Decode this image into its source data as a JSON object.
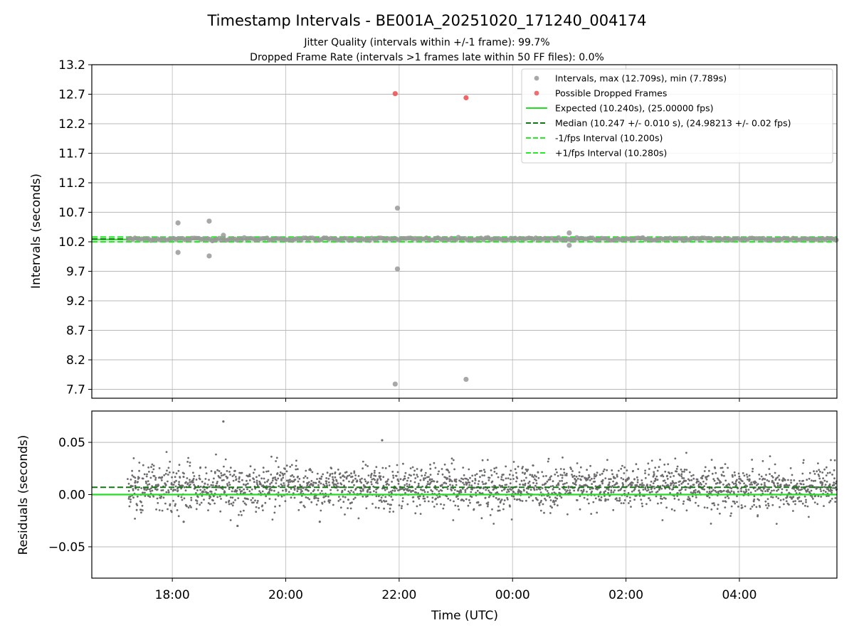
{
  "title": "Timestamp Intervals - BE001A_20251020_171240_004174",
  "subtitle_1": "Jitter Quality (intervals within +/-1 frame): 99.7%",
  "subtitle_2": "Dropped Frame Rate (intervals >1 frames late within 50 FF files): 0.0%",
  "chart_data": [
    {
      "type": "scatter",
      "name": "intervals",
      "ylabel": "Intervals (seconds)",
      "xlabel": "",
      "xlim_hours": [
        16.58,
        29.72
      ],
      "ylim": [
        7.55,
        13.2
      ],
      "y_ticks": [
        7.7,
        8.2,
        8.7,
        9.2,
        9.7,
        10.2,
        10.7,
        11.2,
        11.7,
        12.2,
        12.7,
        13.2
      ],
      "y_tick_labels": [
        "7.7",
        "8.2",
        "8.7",
        "9.2",
        "9.7",
        "10.2",
        "10.7",
        "11.2",
        "11.7",
        "12.2",
        "12.7",
        "13.2"
      ],
      "x_ticks_hours": [
        18,
        20,
        22,
        24,
        26,
        28
      ],
      "grid": true,
      "data_start_hours": 17.22,
      "data_end_hours": 29.72,
      "baseline_interval": 10.247,
      "outliers": [
        {
          "x": 18.1,
          "y": 10.52
        },
        {
          "x": 18.1,
          "y": 10.02
        },
        {
          "x": 18.65,
          "y": 10.55
        },
        {
          "x": 18.65,
          "y": 9.96
        },
        {
          "x": 18.9,
          "y": 10.31
        },
        {
          "x": 21.97,
          "y": 10.77
        },
        {
          "x": 21.97,
          "y": 9.74
        },
        {
          "x": 21.93,
          "y": 7.79
        },
        {
          "x": 23.18,
          "y": 7.87
        },
        {
          "x": 25.0,
          "y": 10.35
        },
        {
          "x": 25.0,
          "y": 10.14
        }
      ],
      "dropped_frames": [
        {
          "x": 21.93,
          "y": 12.71
        },
        {
          "x": 23.18,
          "y": 12.64
        }
      ],
      "expected": 10.24,
      "median": 10.247,
      "minus_one_fps": 10.2,
      "plus_one_fps": 10.28,
      "legend_position": "top-right",
      "legend": [
        {
          "label": "Intervals, max (12.709s), min (7.789s)",
          "kind": "marker",
          "color": "#999999"
        },
        {
          "label": "Possible Dropped Frames",
          "kind": "marker",
          "color": "#ee5555"
        },
        {
          "label": "Expected (10.240s), (25.00000 fps)",
          "kind": "solid",
          "color": "#22dd22"
        },
        {
          "label": "Median (10.247 +/- 0.010 s), (24.98213 +/- 0.02 fps)",
          "kind": "dashed",
          "color": "#117711"
        },
        {
          "label": "-1/fps Interval (10.200s)",
          "kind": "dashed",
          "color": "#22ee22"
        },
        {
          "label": "+1/fps Interval (10.280s)",
          "kind": "dashed",
          "color": "#22ee22"
        }
      ]
    },
    {
      "type": "scatter",
      "name": "residuals",
      "ylabel": "Residuals (seconds)",
      "xlabel": "Time (UTC)",
      "xlim_hours": [
        16.58,
        29.72
      ],
      "ylim": [
        -0.08,
        0.08
      ],
      "y_ticks": [
        -0.05,
        0.0,
        0.05
      ],
      "y_tick_labels": [
        "−0.05",
        "0.00",
        "0.05"
      ],
      "x_ticks_hours": [
        18,
        20,
        22,
        24,
        26,
        28
      ],
      "x_tick_labels": [
        "18:00",
        "20:00",
        "22:00",
        "00:00",
        "02:00",
        "04:00"
      ],
      "grid": true,
      "point_count": 2400,
      "residual_center": 0.007,
      "residual_spread": 0.0105,
      "expected_line": 0.0,
      "median_line": 0.007,
      "notable_points": [
        {
          "x": 18.9,
          "y": 0.07
        },
        {
          "x": 21.7,
          "y": 0.052
        },
        {
          "x": 18.2,
          "y": -0.026
        },
        {
          "x": 19.15,
          "y": -0.03
        },
        {
          "x": 20.6,
          "y": -0.026
        }
      ]
    }
  ],
  "colors": {
    "scatter": "#999999",
    "residual": "#6b6b6b",
    "dropped": "#ee5555",
    "expected": "#22dd22",
    "median": "#117711",
    "fps_bounds": "#22ee22",
    "grid": "#b0b0b0"
  }
}
